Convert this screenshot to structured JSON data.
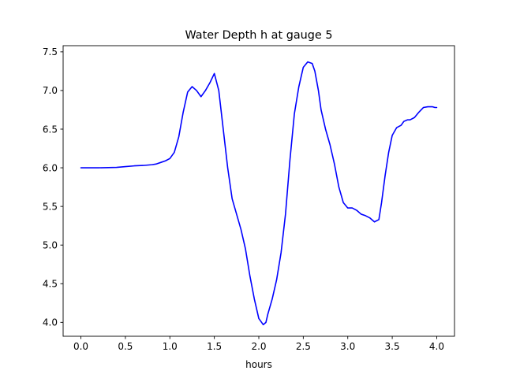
{
  "chart_data": {
    "type": "line",
    "title": "Water Depth h at gauge 5",
    "xlabel": "hours",
    "ylabel": "",
    "xlim": [
      -0.2,
      4.2
    ],
    "ylim": [
      3.82,
      7.58
    ],
    "xticks": [
      0.0,
      0.5,
      1.0,
      1.5,
      2.0,
      2.5,
      3.0,
      3.5,
      4.0
    ],
    "xtick_labels": [
      "0.0",
      "0.5",
      "1.0",
      "1.5",
      "2.0",
      "2.5",
      "3.0",
      "3.5",
      "4.0"
    ],
    "yticks": [
      4.0,
      4.5,
      5.0,
      5.5,
      6.0,
      6.5,
      7.0,
      7.5
    ],
    "ytick_labels": [
      "4.0",
      "4.5",
      "5.0",
      "5.5",
      "6.0",
      "6.5",
      "7.0",
      "7.5"
    ],
    "grid": false,
    "series": [
      {
        "color": "#0000ff",
        "x": [
          0.0,
          0.2,
          0.4,
          0.5,
          0.6,
          0.7,
          0.8,
          0.85,
          0.9,
          0.95,
          1.0,
          1.05,
          1.1,
          1.15,
          1.2,
          1.25,
          1.3,
          1.35,
          1.4,
          1.45,
          1.5,
          1.55,
          1.6,
          1.65,
          1.7,
          1.75,
          1.8,
          1.85,
          1.9,
          1.95,
          2.0,
          2.05,
          2.08,
          2.1,
          2.15,
          2.2,
          2.25,
          2.3,
          2.35,
          2.4,
          2.45,
          2.5,
          2.55,
          2.6,
          2.63,
          2.67,
          2.7,
          2.75,
          2.8,
          2.85,
          2.9,
          2.95,
          3.0,
          3.05,
          3.1,
          3.15,
          3.2,
          3.25,
          3.3,
          3.35,
          3.38,
          3.42,
          3.46,
          3.5,
          3.55,
          3.6,
          3.63,
          3.67,
          3.7,
          3.75,
          3.8,
          3.85,
          3.9,
          3.95,
          3.98,
          4.0
        ],
        "y": [
          6.0,
          6.0,
          6.005,
          6.015,
          6.025,
          6.03,
          6.04,
          6.05,
          6.07,
          6.09,
          6.12,
          6.2,
          6.4,
          6.72,
          6.98,
          7.05,
          7.0,
          6.92,
          7.0,
          7.1,
          7.22,
          7.0,
          6.5,
          6.0,
          5.6,
          5.4,
          5.2,
          4.95,
          4.6,
          4.3,
          4.05,
          3.97,
          4.0,
          4.1,
          4.3,
          4.55,
          4.9,
          5.4,
          6.1,
          6.7,
          7.05,
          7.3,
          7.37,
          7.35,
          7.25,
          7.0,
          6.75,
          6.5,
          6.3,
          6.05,
          5.75,
          5.55,
          5.48,
          5.48,
          5.45,
          5.4,
          5.38,
          5.35,
          5.3,
          5.33,
          5.55,
          5.9,
          6.2,
          6.42,
          6.52,
          6.55,
          6.6,
          6.62,
          6.62,
          6.65,
          6.72,
          6.78,
          6.79,
          6.79,
          6.78,
          6.78
        ]
      }
    ]
  }
}
